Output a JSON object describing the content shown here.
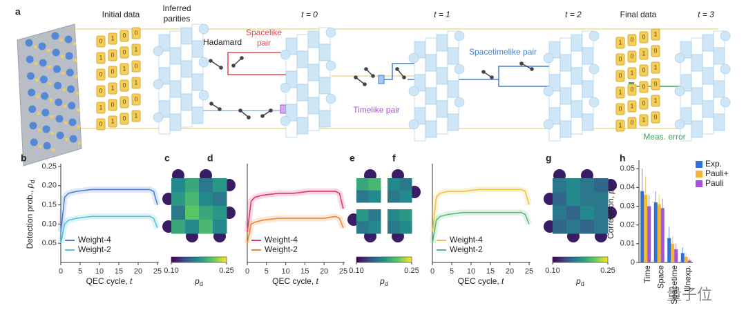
{
  "diagram": {
    "panel": "a",
    "initial_label": "Initial data",
    "parities_label": [
      "Inferred",
      "parities"
    ],
    "times": [
      "t = 0",
      "t = 1",
      "t = 2",
      "t = 3"
    ],
    "final_label": "Final data",
    "hadamard": "Hadamard",
    "spacelike": [
      "Spacelike",
      "pair"
    ],
    "spacetimelike": "Spacetimelike pair",
    "timelike": "Timelike pair",
    "meas_error": "Meas. error",
    "initial_bits": [
      [
        "0",
        "1",
        "0",
        "0"
      ],
      [
        "1",
        "0",
        "0",
        "1"
      ],
      [
        "0",
        "0",
        "1",
        "0"
      ],
      [
        "0",
        "1",
        "0",
        "1"
      ],
      [
        "1",
        "0",
        "0",
        "0"
      ],
      [
        "0",
        "1",
        "0",
        "1"
      ]
    ],
    "final_bits": [
      [
        "1",
        "0",
        "0",
        "1"
      ],
      [
        "0",
        "0",
        "1",
        "0"
      ],
      [
        "0",
        "1",
        "0",
        "1"
      ],
      [
        "1",
        "0",
        "0",
        "0"
      ],
      [
        "0",
        "1",
        "0",
        "1"
      ],
      [
        "1",
        "0",
        "1",
        "0"
      ]
    ]
  },
  "watermark": "量子位",
  "chart_data": [
    {
      "type": "line",
      "panel": "b",
      "ylabel": {
        "text": "Detection prob., ",
        "var": "p",
        "sub": "d"
      },
      "xlabel": {
        "text": "QEC cycle, ",
        "var": "t"
      },
      "x": [
        0,
        1,
        2,
        4,
        8,
        12,
        16,
        20,
        23,
        24,
        25
      ],
      "series": [
        {
          "name": "Weight-4",
          "color": "#4a7fd0",
          "values": [
            0.08,
            0.17,
            0.18,
            0.185,
            0.19,
            0.19,
            0.19,
            0.19,
            0.19,
            0.185,
            0.15
          ]
        },
        {
          "name": "Weight-2",
          "color": "#4fc3e0",
          "values": [
            0.05,
            0.1,
            0.11,
            0.115,
            0.12,
            0.12,
            0.12,
            0.12,
            0.12,
            0.115,
            0.09
          ]
        }
      ],
      "xlim": [
        0,
        25
      ],
      "xticks": [
        0,
        5,
        10,
        15,
        20,
        25
      ],
      "ylim": [
        0,
        0.25
      ],
      "yticks": [
        0.05,
        {
          "value": 0.1,
          "label": "0.10"
        },
        0.15,
        {
          "value": 0.2,
          "label": "0.20"
        },
        0.25
      ],
      "legend": "lower left"
    },
    {
      "type": "heatmap",
      "panel": "c",
      "colormap": "viridis",
      "values": [
        [
          0.17,
          0.19,
          0.16,
          0.18
        ],
        [
          0.18,
          0.2,
          0.17,
          0.16
        ],
        [
          0.16,
          0.21,
          0.19,
          0.18
        ],
        [
          0.19,
          0.17,
          0.2,
          0.17
        ]
      ],
      "clim": [
        0.1,
        0.25
      ],
      "cticks": [
        {
          "value": 0.1,
          "label": "0.10"
        },
        0.25
      ],
      "clabel": {
        "var": "p",
        "sub": "d"
      }
    },
    {
      "type": "line",
      "panel": "d",
      "xlabel": {
        "text": "QEC cycle, ",
        "var": "t"
      },
      "x": [
        0,
        1,
        2,
        4,
        8,
        12,
        16,
        20,
        23,
        24,
        25
      ],
      "series": [
        {
          "name": "Weight-4",
          "color": "#e0336a",
          "values": [
            0.08,
            0.16,
            0.17,
            0.175,
            0.18,
            0.18,
            0.185,
            0.185,
            0.185,
            0.18,
            0.14
          ]
        },
        {
          "name": "Weight-2",
          "color": "#f0832a",
          "values": [
            0.05,
            0.1,
            0.105,
            0.11,
            0.115,
            0.115,
            0.115,
            0.115,
            0.12,
            0.115,
            0.09
          ]
        }
      ],
      "xlim": [
        0,
        25
      ],
      "xticks": [
        0,
        5,
        10,
        15,
        20,
        25
      ],
      "ylim": [
        0,
        0.25
      ],
      "legend": "lower left"
    },
    {
      "type": "heatmap",
      "panel": "e",
      "colormap": "viridis",
      "blocks": [
        2,
        2
      ],
      "values": [
        [
          0.19,
          0.2,
          0.17,
          0.16
        ],
        [
          0.16,
          0.17,
          0.16,
          0.17
        ],
        [
          0.18,
          0.16,
          0.17,
          0.18
        ],
        [
          0.16,
          0.17,
          0.16,
          0.17
        ]
      ],
      "clim": [
        0.1,
        0.25
      ],
      "cticks": [
        {
          "value": 0.1,
          "label": "0.10"
        },
        0.25
      ],
      "clabel": {
        "var": "p",
        "sub": "d"
      }
    },
    {
      "type": "line",
      "panel": "f",
      "xlabel": {
        "text": "QEC cycle, ",
        "var": "t"
      },
      "x": [
        0,
        1,
        2,
        4,
        8,
        12,
        16,
        20,
        23,
        24,
        25
      ],
      "series": [
        {
          "name": "Weight-4",
          "color": "#f0c040",
          "values": [
            0.08,
            0.17,
            0.18,
            0.185,
            0.185,
            0.19,
            0.19,
            0.19,
            0.19,
            0.185,
            0.15
          ]
        },
        {
          "name": "Weight-2",
          "color": "#5cb87a",
          "values": [
            0.05,
            0.11,
            0.12,
            0.125,
            0.13,
            0.13,
            0.13,
            0.13,
            0.13,
            0.125,
            0.1
          ]
        }
      ],
      "xlim": [
        0,
        25
      ],
      "xticks": [
        0,
        5,
        10,
        15,
        20,
        25
      ],
      "ylim": [
        0,
        0.25
      ],
      "legend": "lower left"
    },
    {
      "type": "heatmap",
      "panel": "g",
      "colormap": "viridis",
      "values": [
        [
          0.16,
          0.17,
          0.16,
          0.15
        ],
        [
          0.15,
          0.17,
          0.16,
          0.16
        ],
        [
          0.16,
          0.15,
          0.17,
          0.16
        ],
        [
          0.15,
          0.16,
          0.15,
          0.16
        ]
      ],
      "clim": [
        0.1,
        0.25
      ],
      "cticks": [
        {
          "value": 0.1,
          "label": "0.10"
        },
        0.25
      ],
      "clabel": {
        "var": "p",
        "sub": "d"
      }
    },
    {
      "type": "bar",
      "panel": "h",
      "ylabel": {
        "text": "Correlation, ",
        "var": "p",
        "sub": "ij"
      },
      "categories": [
        "Time",
        "Space",
        "Spacetime",
        "Unexp."
      ],
      "series": [
        {
          "name": "Exp.",
          "color": "#2f6fd6",
          "values": [
            0.038,
            0.032,
            0.013,
            0.005
          ],
          "errors": [
            0.012,
            0.006,
            0.006,
            0.003
          ]
        },
        {
          "name": "Pauli+",
          "color": "#f2b632",
          "values": [
            0.036,
            0.031,
            0.01,
            0.003
          ],
          "errors": [
            0.01,
            0.005,
            0.004,
            0.002
          ]
        },
        {
          "name": "Pauli",
          "color": "#a452d8",
          "values": [
            0.03,
            0.029,
            0.007,
            0.001
          ],
          "errors": [
            0.006,
            0.005,
            0.003,
            0.001
          ]
        }
      ],
      "ylim": [
        0,
        0.053
      ],
      "yticks": [
        0,
        0.01,
        0.02,
        0.03,
        0.04,
        0.05
      ],
      "legend": "upper right"
    }
  ]
}
